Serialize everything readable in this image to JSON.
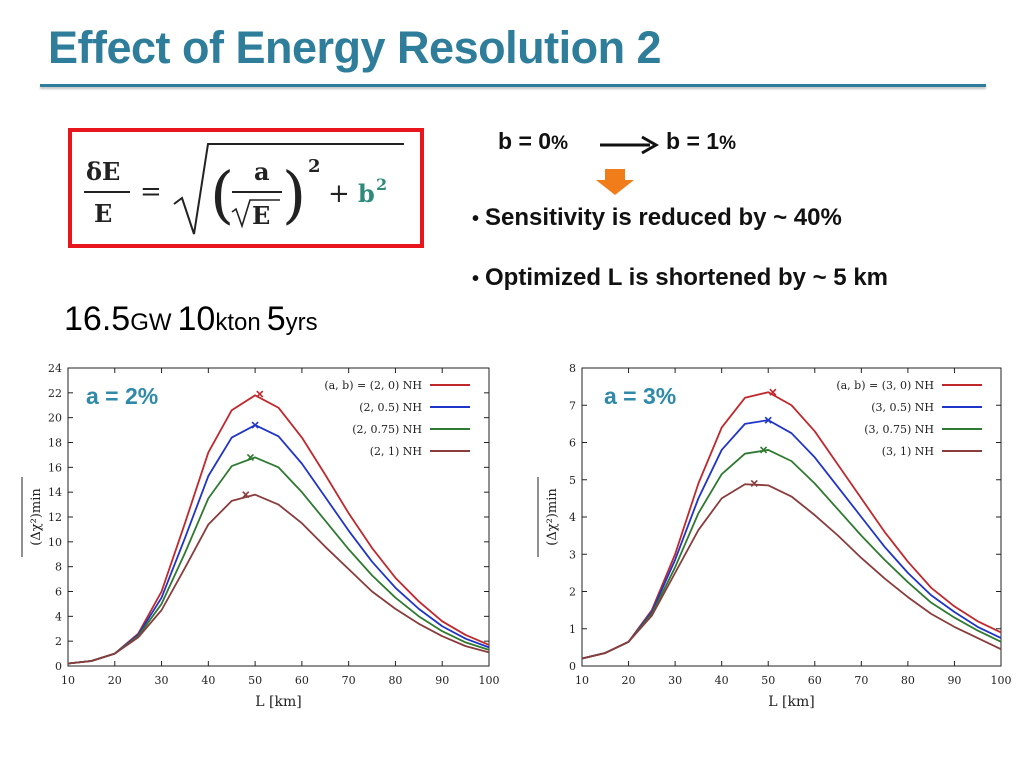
{
  "slide": {
    "title": "Effect of Energy Resolution 2",
    "b_from": "b = 0",
    "b_to": "b = 1",
    "percent": "%",
    "bullets": [
      "Sensitivity is reduced by ~ 40%",
      "Optimized L is shortened by ~ 5 km"
    ],
    "params": {
      "power": "16.5",
      "power_unit": "GW",
      "mass": "10",
      "mass_unit": "kton",
      "time": "5",
      "time_unit": "yrs"
    },
    "formula": {
      "lhs_num": "δE",
      "lhs_den": "E",
      "a": "a",
      "sqrtE": "E",
      "b": "b"
    },
    "colors": {
      "title": "#2e7d9a",
      "box": "#e8161c",
      "annotation": "#2e8aa8",
      "arrow": "#f07d1a"
    }
  },
  "chart_data": [
    {
      "type": "line",
      "annotation": "a = 2%",
      "xlabel": "L [km]",
      "ylabel": "(Δχ²)min",
      "xlim": [
        10,
        100
      ],
      "ylim": [
        0,
        24
      ],
      "xticks": [
        10,
        20,
        30,
        40,
        50,
        60,
        70,
        80,
        90,
        100
      ],
      "yticks": [
        0,
        2,
        4,
        6,
        8,
        10,
        12,
        14,
        16,
        18,
        20,
        22,
        24
      ],
      "legend_position": "top-right",
      "x": [
        10,
        15,
        20,
        25,
        30,
        35,
        40,
        45,
        50,
        55,
        60,
        65,
        70,
        75,
        80,
        85,
        90,
        95,
        100
      ],
      "series": [
        {
          "name": "(a, b) = (2, 0) NH",
          "color": "#c0282d",
          "peak": [
            51,
            21.9
          ],
          "values": [
            0.2,
            0.4,
            1.0,
            2.6,
            6.0,
            11.5,
            17.2,
            20.6,
            21.8,
            20.8,
            18.4,
            15.4,
            12.3,
            9.5,
            7.1,
            5.2,
            3.6,
            2.5,
            1.7
          ]
        },
        {
          "name": "(2, 0.5) NH",
          "color": "#1f34c8",
          "peak": [
            50,
            19.4
          ],
          "values": [
            0.2,
            0.4,
            1.0,
            2.5,
            5.5,
            10.3,
            15.3,
            18.4,
            19.4,
            18.5,
            16.3,
            13.6,
            10.9,
            8.4,
            6.3,
            4.6,
            3.2,
            2.2,
            1.5
          ]
        },
        {
          "name": "(2, 0.75) NH",
          "color": "#2f7a30",
          "peak": [
            49,
            16.8
          ],
          "values": [
            0.2,
            0.4,
            1.0,
            2.4,
            5.0,
            9.1,
            13.5,
            16.1,
            16.8,
            16.0,
            14.0,
            11.7,
            9.4,
            7.3,
            5.5,
            4.0,
            2.8,
            1.9,
            1.3
          ]
        },
        {
          "name": "(2, 1) NH",
          "color": "#8a3c3c",
          "peak": [
            48,
            13.8
          ],
          "values": [
            0.2,
            0.4,
            1.0,
            2.3,
            4.5,
            7.9,
            11.4,
            13.3,
            13.8,
            13.0,
            11.5,
            9.6,
            7.8,
            6.0,
            4.6,
            3.4,
            2.4,
            1.6,
            1.1
          ]
        }
      ]
    },
    {
      "type": "line",
      "annotation": "a = 3%",
      "xlabel": "L [km]",
      "ylabel": "(Δχ²)min",
      "xlim": [
        10,
        100
      ],
      "ylim": [
        0,
        8
      ],
      "xticks": [
        10,
        20,
        30,
        40,
        50,
        60,
        70,
        80,
        90,
        100
      ],
      "yticks": [
        0,
        1,
        2,
        3,
        4,
        5,
        6,
        7,
        8
      ],
      "legend_position": "top-right",
      "x": [
        10,
        15,
        20,
        25,
        30,
        35,
        40,
        45,
        50,
        55,
        60,
        65,
        70,
        75,
        80,
        85,
        90,
        95,
        100
      ],
      "series": [
        {
          "name": "(a, b) = (3, 0) NH",
          "color": "#c0282d",
          "peak": [
            51,
            7.35
          ],
          "values": [
            0.2,
            0.35,
            0.65,
            1.5,
            3.0,
            4.9,
            6.4,
            7.2,
            7.35,
            7.0,
            6.3,
            5.4,
            4.5,
            3.6,
            2.8,
            2.1,
            1.6,
            1.2,
            0.9
          ]
        },
        {
          "name": "(3, 0.5) NH",
          "color": "#1f34c8",
          "peak": [
            50,
            6.6
          ],
          "values": [
            0.2,
            0.35,
            0.65,
            1.45,
            2.85,
            4.5,
            5.8,
            6.5,
            6.6,
            6.25,
            5.6,
            4.8,
            4.0,
            3.2,
            2.5,
            1.9,
            1.45,
            1.05,
            0.75
          ]
        },
        {
          "name": "(3, 0.75) NH",
          "color": "#2f7a30",
          "peak": [
            49,
            5.8
          ],
          "values": [
            0.2,
            0.35,
            0.65,
            1.4,
            2.65,
            4.1,
            5.15,
            5.7,
            5.8,
            5.5,
            4.9,
            4.2,
            3.5,
            2.85,
            2.25,
            1.7,
            1.3,
            0.95,
            0.65
          ]
        },
        {
          "name": "(3, 1) NH",
          "color": "#8a3c3c",
          "peak": [
            47,
            4.9
          ],
          "values": [
            0.2,
            0.35,
            0.65,
            1.35,
            2.5,
            3.65,
            4.5,
            4.88,
            4.85,
            4.55,
            4.05,
            3.5,
            2.9,
            2.35,
            1.85,
            1.4,
            1.05,
            0.75,
            0.45
          ]
        }
      ]
    }
  ]
}
